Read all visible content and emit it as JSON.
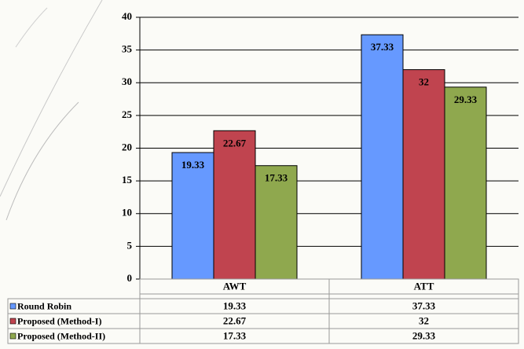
{
  "chart_data": {
    "type": "bar",
    "categories": [
      "AWT",
      "ATT"
    ],
    "series": [
      {
        "name": "Round Robin",
        "color": "#6699ff",
        "values": [
          19.33,
          37.33
        ]
      },
      {
        "name": "Proposed (Method-I)",
        "color": "#c0444f",
        "values": [
          22.67,
          32
        ]
      },
      {
        "name": "Proposed (Method-II)",
        "color": "#8fa84e",
        "values": [
          17.33,
          29.33
        ]
      }
    ],
    "ylim": [
      0,
      40
    ],
    "yticks": [
      0,
      5,
      10,
      15,
      20,
      25,
      30,
      35,
      40
    ],
    "grid": true
  }
}
